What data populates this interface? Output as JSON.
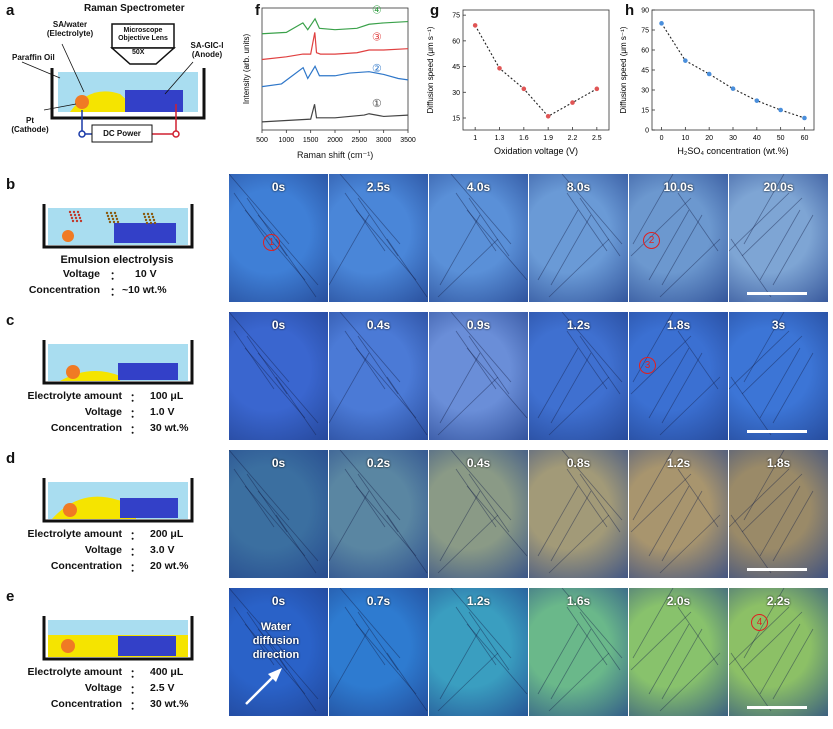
{
  "panel_labels": {
    "a": "a",
    "b": "b",
    "c": "c",
    "d": "d",
    "e": "e",
    "f": "f",
    "g": "g",
    "h": "h"
  },
  "panel_a": {
    "title": "Raman Spectrometer",
    "lens": "Microscope Objective Lens",
    "magnification": "50X",
    "electrolyte": "SA/water (Electrolyte)",
    "oil": "Paraffin Oil",
    "anode": "SA-GIC-I (Anode)",
    "cathode": "Pt (Cathode)",
    "power": "DC Power"
  },
  "panel_b": {
    "title": "Emulsion electrolysis",
    "rows": [
      {
        "key": "Voltage",
        "sep": "：",
        "value": "10 V"
      },
      {
        "key": "Concentration",
        "sep": "：",
        "value": "~10 wt.%"
      }
    ],
    "times": [
      "0s",
      "2.5s",
      "4.0s",
      "8.0s",
      "10.0s",
      "20.0s"
    ],
    "markers": [
      "1",
      "2"
    ]
  },
  "panel_c": {
    "rows": [
      {
        "key": "Electrolyte amount",
        "sep": "：",
        "value": "100 μL"
      },
      {
        "key": "Voltage",
        "sep": "：",
        "value": "1.0 V"
      },
      {
        "key": "Concentration",
        "sep": "：",
        "value": "30 wt.%"
      }
    ],
    "times": [
      "0s",
      "0.4s",
      "0.9s",
      "1.2s",
      "1.8s",
      "3s"
    ],
    "markers": [
      "3"
    ]
  },
  "panel_d": {
    "rows": [
      {
        "key": "Electrolyte amount",
        "sep": "：",
        "value": "200 μL"
      },
      {
        "key": "Voltage",
        "sep": "：",
        "value": "3.0 V"
      },
      {
        "key": "Concentration",
        "sep": "：",
        "value": "20 wt.%"
      }
    ],
    "times": [
      "0s",
      "0.2s",
      "0.4s",
      "0.8s",
      "1.2s",
      "1.8s"
    ]
  },
  "panel_e": {
    "rows": [
      {
        "key": "Electrolyte amount",
        "sep": "：",
        "value": "400 μL"
      },
      {
        "key": "Voltage",
        "sep": "：",
        "value": "2.5 V"
      },
      {
        "key": "Concentration",
        "sep": "：",
        "value": "30 wt.%"
      }
    ],
    "times": [
      "0s",
      "0.7s",
      "1.2s",
      "1.6s",
      "2.0s",
      "2.2s"
    ],
    "markers": [
      "4"
    ],
    "annotation": [
      "Water",
      "diffusion",
      "direction"
    ]
  },
  "chart_data": [
    {
      "type": "line",
      "panel": "f",
      "xlabel": "Raman shift (cm⁻¹)",
      "ylabel": "Intensity (arb. units)",
      "xlim": [
        500,
        3500
      ],
      "xticks": [
        500,
        1000,
        1500,
        2000,
        2500,
        3000,
        3500
      ],
      "series": [
        {
          "name": "④",
          "color": "#3aa14a",
          "x": [
            500,
            1000,
            1340,
            1440,
            1590,
            1680,
            2000,
            2450,
            2700,
            3000,
            3500
          ],
          "y": [
            3.55,
            3.6,
            3.95,
            3.7,
            4.1,
            3.75,
            3.7,
            3.75,
            3.9,
            3.95,
            4.0
          ]
        },
        {
          "name": "③",
          "color": "#e04040",
          "x": [
            500,
            1000,
            1340,
            1500,
            1585,
            1620,
            1700,
            2000,
            2450,
            2700,
            3000,
            3500
          ],
          "y": [
            2.6,
            2.7,
            2.8,
            2.8,
            3.6,
            2.85,
            2.8,
            2.8,
            2.85,
            2.95,
            2.95,
            3.0
          ]
        },
        {
          "name": "②",
          "color": "#2f77c9",
          "x": [
            500,
            900,
            1345,
            1440,
            1590,
            1680,
            2000,
            2300,
            2700,
            3000,
            3300,
            3500
          ],
          "y": [
            1.6,
            1.7,
            2.3,
            1.9,
            2.35,
            2.0,
            2.0,
            2.1,
            2.15,
            2.05,
            1.9,
            1.85
          ]
        },
        {
          "name": "①",
          "color": "#444444",
          "x": [
            500,
            1000,
            1500,
            1580,
            1620,
            2000,
            2600,
            2700,
            3000,
            3500
          ],
          "y": [
            0.3,
            0.35,
            0.4,
            0.95,
            0.45,
            0.45,
            0.55,
            0.6,
            0.5,
            0.55
          ]
        }
      ]
    },
    {
      "type": "line",
      "panel": "g",
      "xlabel": "Oxidation voltage (V)",
      "ylabel": "Diffusion speed (μm s⁻¹)",
      "x": [
        1.0,
        1.3,
        1.6,
        1.9,
        2.2,
        2.5
      ],
      "values": [
        69,
        44,
        32,
        16,
        24,
        32
      ],
      "xlim": [
        0.85,
        2.65
      ],
      "ylim": [
        8,
        78
      ],
      "yticks": [
        15,
        30,
        45,
        60,
        75
      ],
      "color": "#e05555"
    },
    {
      "type": "line",
      "panel": "h",
      "xlabel": "H₂SO₄ concentration (wt.%)",
      "ylabel": "Diffusion speed (μm s⁻¹)",
      "x": [
        0,
        10,
        20,
        30,
        40,
        50,
        60
      ],
      "values": [
        80,
        52,
        42,
        31,
        22,
        15,
        9
      ],
      "xlim": [
        -4,
        64
      ],
      "ylim": [
        0,
        90
      ],
      "yticks": [
        0,
        15,
        30,
        45,
        60,
        75,
        90
      ],
      "color": "#4a8fdc"
    }
  ]
}
